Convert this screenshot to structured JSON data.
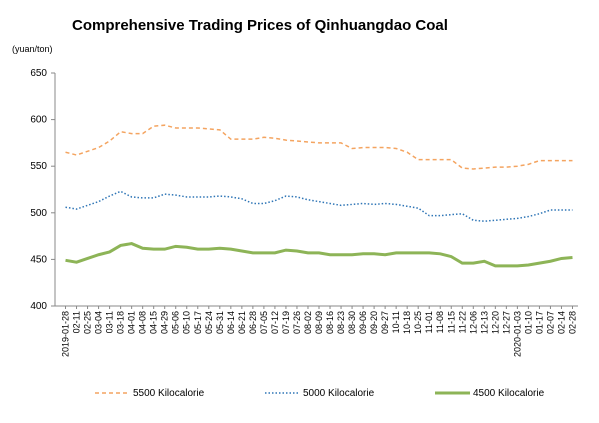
{
  "chart_data": {
    "type": "line",
    "title": "Comprehensive Trading Prices of Qinhuangdao Coal",
    "y_label": "(yuan/ton)",
    "categories": [
      "2019-01-28",
      "02-11",
      "02-25",
      "03-04",
      "03-11",
      "03-18",
      "04-01",
      "04-08",
      "04-15",
      "04-29",
      "05-06",
      "05-10",
      "05-17",
      "05-24",
      "05-31",
      "06-14",
      "06-21",
      "06-28",
      "07-05",
      "07-12",
      "07-19",
      "07-26",
      "08-02",
      "08-09",
      "08-16",
      "08-23",
      "08-30",
      "09-06",
      "09-20",
      "09-27",
      "10-11",
      "10-18",
      "10-25",
      "11-01",
      "11-08",
      "11-15",
      "11-22",
      "12-06",
      "12-13",
      "12-20",
      "12-27",
      "2020-01-03",
      "01-10",
      "01-17",
      "02-07",
      "02-14",
      "02-28"
    ],
    "series": [
      {
        "name": "5500 Kilocalorie",
        "color": "#f4a460",
        "dash": "4,3",
        "values": [
          565,
          562,
          566,
          570,
          577,
          587,
          585,
          585,
          593,
          594,
          591,
          591,
          591,
          590,
          589,
          579,
          579,
          579,
          581,
          580,
          578,
          577,
          576,
          575,
          575,
          575,
          569,
          570,
          570,
          570,
          569,
          565,
          557,
          557,
          557,
          557,
          548,
          547,
          548,
          549,
          549,
          550,
          552,
          556,
          556,
          556,
          556
        ]
      },
      {
        "name": "5000 Kilocalorie",
        "color": "#2e75b6",
        "dash": "1.5,2",
        "values": [
          506,
          504,
          508,
          512,
          518,
          523,
          517,
          516,
          516,
          520,
          519,
          517,
          517,
          517,
          518,
          517,
          515,
          510,
          510,
          513,
          518,
          517,
          514,
          512,
          510,
          508,
          509,
          510,
          509,
          510,
          509,
          507,
          505,
          497,
          497,
          498,
          499,
          492,
          491,
          492,
          493,
          494,
          496,
          499,
          503,
          503,
          503
        ]
      },
      {
        "name": "4500 Kilocalorie",
        "color": "#8db457",
        "dash": "",
        "values": [
          449,
          447,
          451,
          455,
          458,
          465,
          467,
          462,
          461,
          461,
          464,
          463,
          461,
          461,
          462,
          461,
          459,
          457,
          457,
          457,
          460,
          459,
          457,
          457,
          455,
          455,
          455,
          456,
          456,
          455,
          457,
          457,
          457,
          457,
          456,
          453,
          446,
          446,
          448,
          443,
          443,
          443,
          444,
          446,
          448,
          451,
          452
        ]
      }
    ],
    "ylim": [
      400,
      650
    ],
    "yticks": [
      400,
      450,
      500,
      550,
      600,
      650
    ],
    "legend": "bottom"
  }
}
